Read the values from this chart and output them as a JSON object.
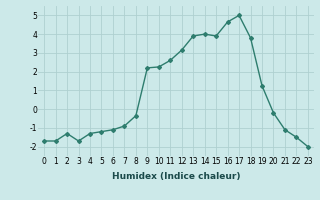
{
  "x": [
    0,
    1,
    2,
    3,
    4,
    5,
    6,
    7,
    8,
    9,
    10,
    11,
    12,
    13,
    14,
    15,
    16,
    17,
    18,
    19,
    20,
    21,
    22,
    23
  ],
  "y": [
    -1.7,
    -1.7,
    -1.3,
    -1.7,
    -1.3,
    -1.2,
    -1.1,
    -0.9,
    -0.35,
    2.2,
    2.25,
    2.6,
    3.15,
    3.9,
    4.0,
    3.9,
    4.65,
    5.0,
    3.8,
    1.25,
    -0.2,
    -1.1,
    -1.5,
    -2.0
  ],
  "line_color": "#2e7d6e",
  "bg_color": "#cce9e9",
  "grid_color": "#afd0d0",
  "xlabel": "Humidex (Indice chaleur)",
  "ylim": [
    -2.5,
    5.5
  ],
  "xlim": [
    -0.5,
    23.5
  ],
  "yticks": [
    -2,
    -1,
    0,
    1,
    2,
    3,
    4,
    5
  ],
  "xticks": [
    0,
    1,
    2,
    3,
    4,
    5,
    6,
    7,
    8,
    9,
    10,
    11,
    12,
    13,
    14,
    15,
    16,
    17,
    18,
    19,
    20,
    21,
    22,
    23
  ],
  "xtick_labels": [
    "0",
    "1",
    "2",
    "3",
    "4",
    "5",
    "6",
    "7",
    "8",
    "9",
    "10",
    "11",
    "12",
    "13",
    "14",
    "15",
    "16",
    "17",
    "18",
    "19",
    "20",
    "21",
    "22",
    "23"
  ],
  "marker": "D",
  "marker_size": 2.0,
  "line_width": 1.0,
  "tick_fontsize": 5.5,
  "xlabel_fontsize": 6.5
}
